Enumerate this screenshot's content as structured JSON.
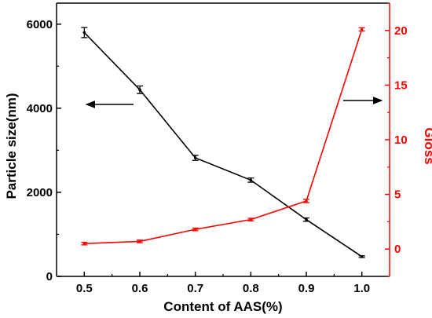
{
  "chart_data": {
    "type": "line",
    "xlabel": "Content of AAS(%)",
    "ylabel_left": "Particle size(nm)",
    "ylabel_right": "Gloss",
    "x": [
      0.5,
      0.6,
      0.7,
      0.8,
      0.9,
      1.0
    ],
    "x_tick_labels": [
      "0.5",
      "0.6",
      "0.7",
      "0.8",
      "0.9",
      "1.0"
    ],
    "ylim_left": [
      0,
      6500
    ],
    "yticks_left": [
      0,
      2000,
      4000,
      6000
    ],
    "y_tick_labels_left": [
      "0",
      "2000",
      "4000",
      "6000"
    ],
    "ylim_right": [
      -2.5,
      22.5
    ],
    "yticks_right": [
      0,
      5,
      10,
      15,
      20
    ],
    "y_tick_labels_right": [
      "0",
      "5",
      "10",
      "15",
      "20"
    ],
    "grid": false,
    "series": [
      {
        "axis": "left",
        "color": "#000000",
        "values": [
          5800,
          4440,
          2820,
          2290,
          1350,
          470
        ],
        "errors": [
          120,
          90,
          60,
          50,
          40,
          20
        ]
      },
      {
        "axis": "right",
        "color": "#ff0000",
        "values": [
          0.5,
          0.7,
          1.8,
          2.7,
          4.4,
          20.1
        ],
        "errors": [
          0.12,
          0.12,
          0.12,
          0.12,
          0.15,
          0.15
        ]
      }
    ],
    "annotations": [
      {
        "type": "arrow",
        "direction": "left",
        "series_axis": "left"
      },
      {
        "type": "arrow",
        "direction": "right",
        "series_axis": "right"
      }
    ]
  }
}
